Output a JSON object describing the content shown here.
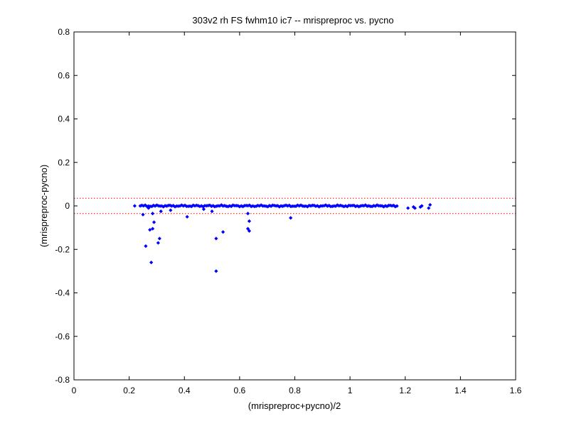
{
  "chart_data": {
    "type": "scatter",
    "title": "303v2 rh FS fwhm10 ic7 -- mrispreproc vs. pycno",
    "xlabel": "(mrispreproc+pycno)/2",
    "ylabel": "(mrispreproc-pycno)",
    "xlim": [
      0,
      1.6
    ],
    "ylim": [
      -0.8,
      0.8
    ],
    "xticks": [
      "0",
      "0.2",
      "0.4",
      "0.6",
      "0.8",
      "1",
      "1.2",
      "1.4",
      "1.6"
    ],
    "yticks": [
      "0.8",
      "0.6",
      "0.4",
      "0.2",
      "0",
      "-0.2",
      "-0.4",
      "-0.6",
      "-0.8"
    ],
    "grid": false,
    "colors": {
      "points": "#0000ff",
      "limit_lines": "#ff0000",
      "axes": "#000000"
    },
    "limit_lines": [
      0.035,
      -0.035
    ],
    "series": [
      {
        "dense_band": {
          "x_start": 0.24,
          "x_end": 1.17,
          "y_center": 0.0,
          "spread": 0.004
        },
        "points": [
          {
            "x": 0.22,
            "y": 0.0
          },
          {
            "x": 0.25,
            "y": -0.04
          },
          {
            "x": 0.26,
            "y": -0.185
          },
          {
            "x": 0.27,
            "y": -0.01
          },
          {
            "x": 0.275,
            "y": -0.11
          },
          {
            "x": 0.28,
            "y": -0.26
          },
          {
            "x": 0.285,
            "y": -0.105
          },
          {
            "x": 0.285,
            "y": -0.035
          },
          {
            "x": 0.29,
            "y": -0.075
          },
          {
            "x": 0.305,
            "y": -0.17
          },
          {
            "x": 0.31,
            "y": -0.15
          },
          {
            "x": 0.315,
            "y": -0.025
          },
          {
            "x": 0.35,
            "y": -0.02
          },
          {
            "x": 0.41,
            "y": -0.05
          },
          {
            "x": 0.47,
            "y": -0.015
          },
          {
            "x": 0.5,
            "y": -0.025
          },
          {
            "x": 0.515,
            "y": -0.15
          },
          {
            "x": 0.515,
            "y": -0.3
          },
          {
            "x": 0.54,
            "y": -0.12
          },
          {
            "x": 0.63,
            "y": -0.035
          },
          {
            "x": 0.63,
            "y": -0.105
          },
          {
            "x": 0.635,
            "y": -0.07
          },
          {
            "x": 0.635,
            "y": -0.115
          },
          {
            "x": 0.785,
            "y": -0.055
          },
          {
            "x": 1.21,
            "y": -0.01
          },
          {
            "x": 1.23,
            "y": -0.005
          },
          {
            "x": 1.235,
            "y": -0.01
          },
          {
            "x": 1.255,
            "y": -0.005
          },
          {
            "x": 1.26,
            "y": 0.0
          },
          {
            "x": 1.285,
            "y": -0.01
          },
          {
            "x": 1.29,
            "y": 0.005
          }
        ]
      }
    ]
  }
}
